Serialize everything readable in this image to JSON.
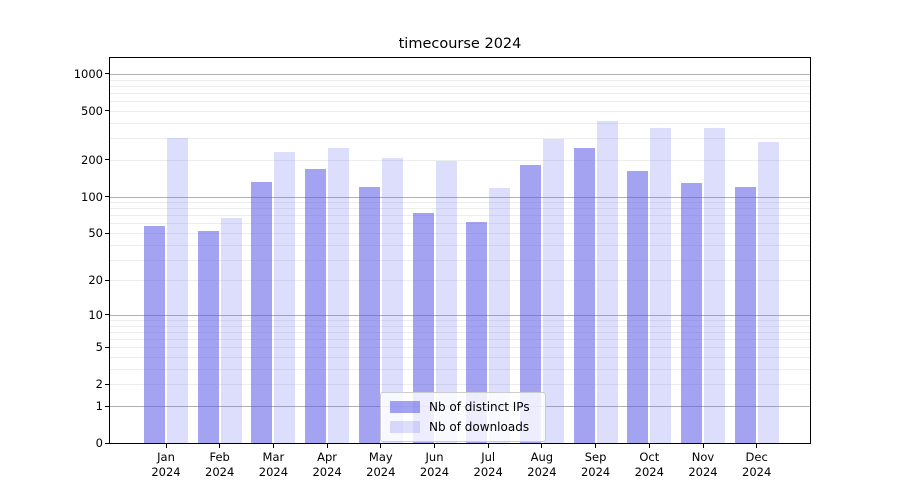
{
  "chart_data": {
    "type": "bar",
    "title": "timecourse 2024",
    "categories": [
      "Jan",
      "Feb",
      "Mar",
      "Apr",
      "May",
      "Jun",
      "Jul",
      "Aug",
      "Sep",
      "Oct",
      "Nov",
      "Dec"
    ],
    "x_year_label": "2024",
    "series": [
      {
        "name": "Nb of distinct IPs",
        "color": "rgba(88,88,232,0.55)",
        "values": [
          57,
          52,
          131,
          167,
          120,
          73,
          62,
          182,
          250,
          162,
          128,
          119
        ]
      },
      {
        "name": "Nb of downloads",
        "color": "rgba(100,100,240,0.22)",
        "values": [
          300,
          67,
          231,
          249,
          206,
          194,
          118,
          294,
          412,
          366,
          361,
          281
        ]
      }
    ],
    "y_scale": "log1p",
    "ylim": [
      0,
      1370
    ],
    "y_ticks": [
      0,
      1,
      2,
      5,
      10,
      20,
      50,
      100,
      200,
      500,
      1000
    ],
    "y_major_gridlines": [
      1,
      10,
      100,
      1000
    ],
    "y_minor_gridlines": [
      2,
      3,
      4,
      5,
      6,
      7,
      8,
      9,
      20,
      30,
      40,
      50,
      60,
      70,
      80,
      90,
      200,
      300,
      400,
      500,
      600,
      700,
      800,
      900
    ],
    "legend_position": "lower-center",
    "grid": true,
    "colors": {
      "major_grid": "#b0b0b0",
      "minor_grid": "#ededed",
      "axis": "#000000",
      "background": "#ffffff"
    }
  }
}
